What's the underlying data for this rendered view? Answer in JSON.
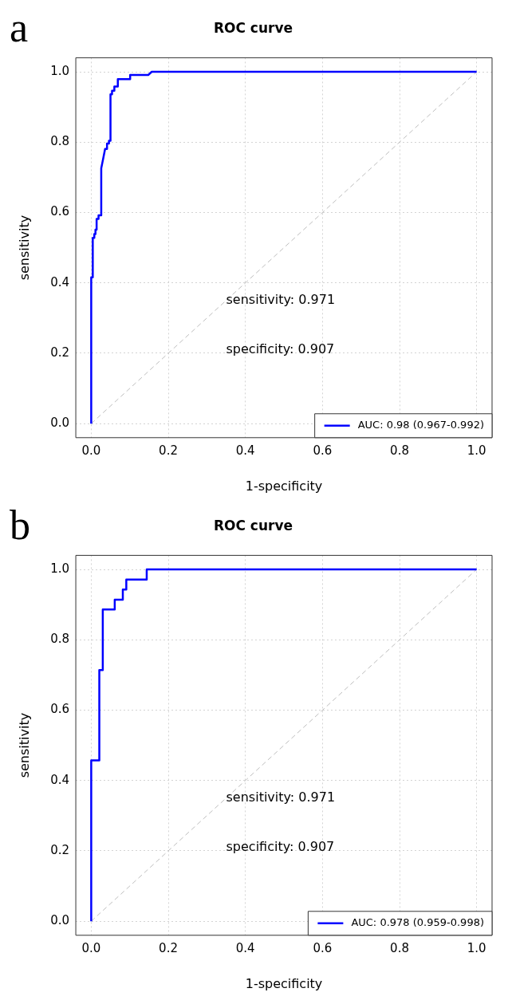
{
  "chart_data": [
    {
      "type": "line",
      "title": "ROC curve",
      "xlabel": "1-specificity",
      "ylabel": "sensitivity",
      "annotations": [
        "a",
        "sensitivity: 0.971",
        "specificity: 0.907"
      ],
      "xlim": [
        -0.04,
        1.04
      ],
      "ylim": [
        -0.04,
        1.04
      ],
      "xticks": [
        {
          "value": 0,
          "label": "0.0"
        },
        {
          "value": 0.2,
          "label": "0.2"
        },
        {
          "value": 0.4,
          "label": "0.4"
        },
        {
          "value": 0.6,
          "label": "0.6"
        },
        {
          "value": 0.8,
          "label": "0.8"
        },
        {
          "value": 1,
          "label": "1.0"
        }
      ],
      "yticks": [
        {
          "value": 0,
          "label": "0.0"
        },
        {
          "value": 0.2,
          "label": "0.2"
        },
        {
          "value": 0.4,
          "label": "0.4"
        },
        {
          "value": 0.6,
          "label": "0.6"
        },
        {
          "value": 0.8,
          "label": "0.8"
        },
        {
          "value": 1,
          "label": "1.0"
        }
      ],
      "grid": true,
      "legend": "bottom right",
      "marker": "none",
      "series": [
        {
          "name": "AUC: 0.98 (0.967-0.992)",
          "color": "#0000ff",
          "line_style": "solid",
          "x": [
            0,
            0,
            0.004,
            0.004,
            0.008,
            0.008,
            0.011,
            0.011,
            0.014,
            0.014,
            0.019,
            0.019,
            0.026,
            0.026,
            0.031,
            0.036,
            0.041,
            0.041,
            0.046,
            0.046,
            0.05,
            0.05,
            0.054,
            0.054,
            0.06,
            0.06,
            0.069,
            0.069,
            0.101,
            0.101,
            0.148,
            0.157,
            1
          ],
          "values": [
            0,
            0.416,
            0.416,
            0.528,
            0.528,
            0.539,
            0.539,
            0.551,
            0.551,
            0.582,
            0.582,
            0.592,
            0.592,
            0.726,
            0.753,
            0.781,
            0.781,
            0.796,
            0.796,
            0.804,
            0.804,
            0.936,
            0.936,
            0.946,
            0.946,
            0.958,
            0.958,
            0.979,
            0.979,
            0.991,
            0.991,
            1,
            1
          ]
        },
        {
          "color": "#bebebe",
          "line_style": "dashed",
          "x": [
            0,
            1
          ],
          "values": [
            0,
            1
          ]
        }
      ]
    },
    {
      "type": "line",
      "title": "ROC curve",
      "xlabel": "1-specificity",
      "ylabel": "sensitivity",
      "annotations": [
        "b",
        "sensitivity: 0.971",
        "specificity: 0.907"
      ],
      "xlim": [
        -0.04,
        1.04
      ],
      "ylim": [
        -0.04,
        1.04
      ],
      "xticks": [
        {
          "value": 0,
          "label": "0.0"
        },
        {
          "value": 0.2,
          "label": "0.2"
        },
        {
          "value": 0.4,
          "label": "0.4"
        },
        {
          "value": 0.6,
          "label": "0.6"
        },
        {
          "value": 0.8,
          "label": "0.8"
        },
        {
          "value": 1,
          "label": "1.0"
        }
      ],
      "yticks": [
        {
          "value": 0,
          "label": "0.0"
        },
        {
          "value": 0.2,
          "label": "0.2"
        },
        {
          "value": 0.4,
          "label": "0.4"
        },
        {
          "value": 0.6,
          "label": "0.6"
        },
        {
          "value": 0.8,
          "label": "0.8"
        },
        {
          "value": 1,
          "label": "1.0"
        }
      ],
      "grid": true,
      "legend": "bottom right",
      "marker": "none",
      "series": [
        {
          "name": "AUC: 0.978 (0.959-0.998)",
          "color": "#0000ff",
          "line_style": "solid",
          "x": [
            0,
            0,
            0.021,
            0.021,
            0.03,
            0.03,
            0.061,
            0.061,
            0.082,
            0.082,
            0.091,
            0.091,
            0.144,
            0.144,
            1
          ],
          "values": [
            0,
            0.457,
            0.457,
            0.714,
            0.714,
            0.886,
            0.886,
            0.914,
            0.914,
            0.943,
            0.943,
            0.971,
            0.971,
            1,
            1
          ]
        },
        {
          "color": "#bebebe",
          "line_style": "dashed",
          "x": [
            0,
            1
          ],
          "values": [
            0,
            1
          ]
        }
      ]
    }
  ]
}
